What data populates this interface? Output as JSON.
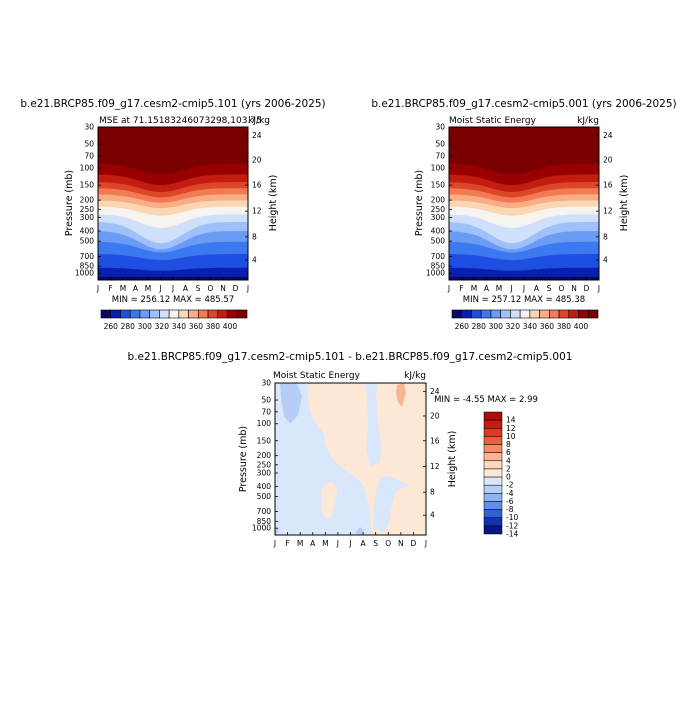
{
  "panels": {
    "left": {
      "title": "b.e21.BRCP85.f09_g17.cesm2-cmip5.101 (yrs 2006-2025)",
      "subtitle_left": "MSE at 71.15183246073298,103.75",
      "subtitle_right": "kJ/kg",
      "minmax": "MIN = 256.12 MAX = 485.57"
    },
    "right": {
      "title": "b.e21.BRCP85.f09_g17.cesm2-cmip5.001 (yrs 2006-2025)",
      "subtitle_left": "Moist Static Energy",
      "subtitle_right": "kJ/kg",
      "minmax": "MIN = 257.12 MAX = 485.38"
    },
    "diff": {
      "title": "b.e21.BRCP85.f09_g17.cesm2-cmip5.101 - b.e21.BRCP85.f09_g17.cesm2-cmip5.001",
      "subtitle_left": "Moist Static Energy",
      "subtitle_right": "kJ/kg",
      "minmax": "MIN =   -4.55 MAX =    2.99"
    }
  },
  "chart_data": [
    {
      "type": "heatmap",
      "title": "b.e21.BRCP85.f09_g17.cesm2-cmip5.101 (yrs 2006-2025)",
      "subtitle": "MSE at 71.15183246073298,103.75",
      "units": "kJ/kg",
      "xlabel": "",
      "ylabel": "Pressure (mb)",
      "y2label": "Height (km)",
      "x_ticks": [
        "J",
        "F",
        "M",
        "A",
        "M",
        "J",
        "J",
        "A",
        "S",
        "O",
        "N",
        "D",
        "J"
      ],
      "y_ticks": [
        "30",
        "50",
        "70",
        "100",
        "150",
        "200",
        "250",
        "300",
        "400",
        "500",
        "700",
        "850",
        "1000"
      ],
      "y2_ticks": [
        "24",
        "20",
        "16",
        "12",
        "8",
        "4"
      ],
      "colorbar_levels": [
        "260",
        "280",
        "300",
        "320",
        "340",
        "360",
        "380",
        "400"
      ],
      "min": 256.12,
      "max": 485.57
    },
    {
      "type": "heatmap",
      "title": "b.e21.BRCP85.f09_g17.cesm2-cmip5.001 (yrs 2006-2025)",
      "subtitle": "Moist Static Energy",
      "units": "kJ/kg",
      "xlabel": "",
      "ylabel": "Pressure (mb)",
      "y2label": "Height (km)",
      "x_ticks": [
        "J",
        "F",
        "M",
        "A",
        "M",
        "J",
        "J",
        "A",
        "S",
        "O",
        "N",
        "D",
        "J"
      ],
      "y_ticks": [
        "30",
        "50",
        "70",
        "100",
        "150",
        "200",
        "250",
        "300",
        "400",
        "500",
        "700",
        "850",
        "1000"
      ],
      "y2_ticks": [
        "24",
        "20",
        "16",
        "12",
        "8",
        "4"
      ],
      "colorbar_levels": [
        "260",
        "280",
        "300",
        "320",
        "340",
        "360",
        "380",
        "400"
      ],
      "min": 257.12,
      "max": 485.38
    },
    {
      "type": "heatmap",
      "title": "b.e21.BRCP85.f09_g17.cesm2-cmip5.101 - b.e21.BRCP85.f09_g17.cesm2-cmip5.001",
      "subtitle": "Moist Static Energy",
      "units": "kJ/kg",
      "xlabel": "",
      "ylabel": "Pressure (mb)",
      "y2label": "Height (km)",
      "x_ticks": [
        "J",
        "F",
        "M",
        "A",
        "M",
        "J",
        "J",
        "A",
        "S",
        "O",
        "N",
        "D",
        "J"
      ],
      "y_ticks": [
        "30",
        "50",
        "70",
        "100",
        "150",
        "200",
        "250",
        "300",
        "400",
        "500",
        "700",
        "850",
        "1000"
      ],
      "y2_ticks": [
        "24",
        "20",
        "16",
        "12",
        "8",
        "4"
      ],
      "colorbar_levels": [
        "14",
        "12",
        "10",
        "8",
        "6",
        "4",
        "2",
        "0",
        "-2",
        "-4",
        "-6",
        "-8",
        "-10",
        "-12",
        "-14"
      ],
      "min": -4.55,
      "max": 2.99
    }
  ],
  "colors": {
    "seq_palette": [
      "#08086b",
      "#0a1fb0",
      "#1f4fe0",
      "#3c78f0",
      "#6b9bf5",
      "#9fc0fa",
      "#cfe0fb",
      "#f7f4f0",
      "#fbd6b4",
      "#f8ad85",
      "#f27a55",
      "#dd4628",
      "#c21d10",
      "#990000",
      "#7a0000"
    ],
    "diff_palette": [
      "#ac0e0a",
      "#c71a14",
      "#df3722",
      "#ee5c3e",
      "#f68a68",
      "#f8b494",
      "#fbd9bf",
      "#fde8d6",
      "#d8e7fb",
      "#b6cef7",
      "#8db2f2",
      "#5e8fec",
      "#2e62d9",
      "#1133b3",
      "#0a1585"
    ]
  }
}
